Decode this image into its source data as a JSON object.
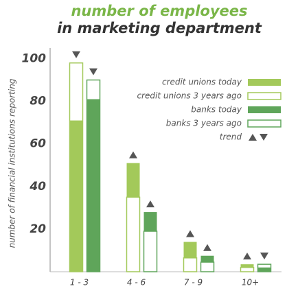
{
  "chart_data": {
    "type": "bar",
    "title": "number of employees",
    "subtitle": "in marketing department",
    "y_label": "number of financial institutions reporting",
    "categories": [
      "1 - 3",
      "4 - 6",
      "7 - 9",
      "10+"
    ],
    "series": [
      {
        "name": "credit unions today",
        "color": "#a3c95a",
        "outline": false,
        "values": [
          71,
          51,
          14,
          3.5
        ]
      },
      {
        "name": "credit unions 3 years ago",
        "color": "#a3c95a",
        "outline": true,
        "values": [
          98,
          35,
          6.5,
          2
        ]
      },
      {
        "name": "banks today",
        "color": "#5fa55a",
        "outline": false,
        "values": [
          81,
          28,
          7.5,
          2
        ]
      },
      {
        "name": "banks 3 years ago",
        "color": "#5fa55a",
        "outline": true,
        "values": [
          90,
          19,
          4.5,
          3.5
        ]
      }
    ],
    "trend_label": "trend",
    "ylim": [
      0,
      105
    ],
    "yticks": [
      20,
      40,
      60,
      80,
      100
    ]
  }
}
